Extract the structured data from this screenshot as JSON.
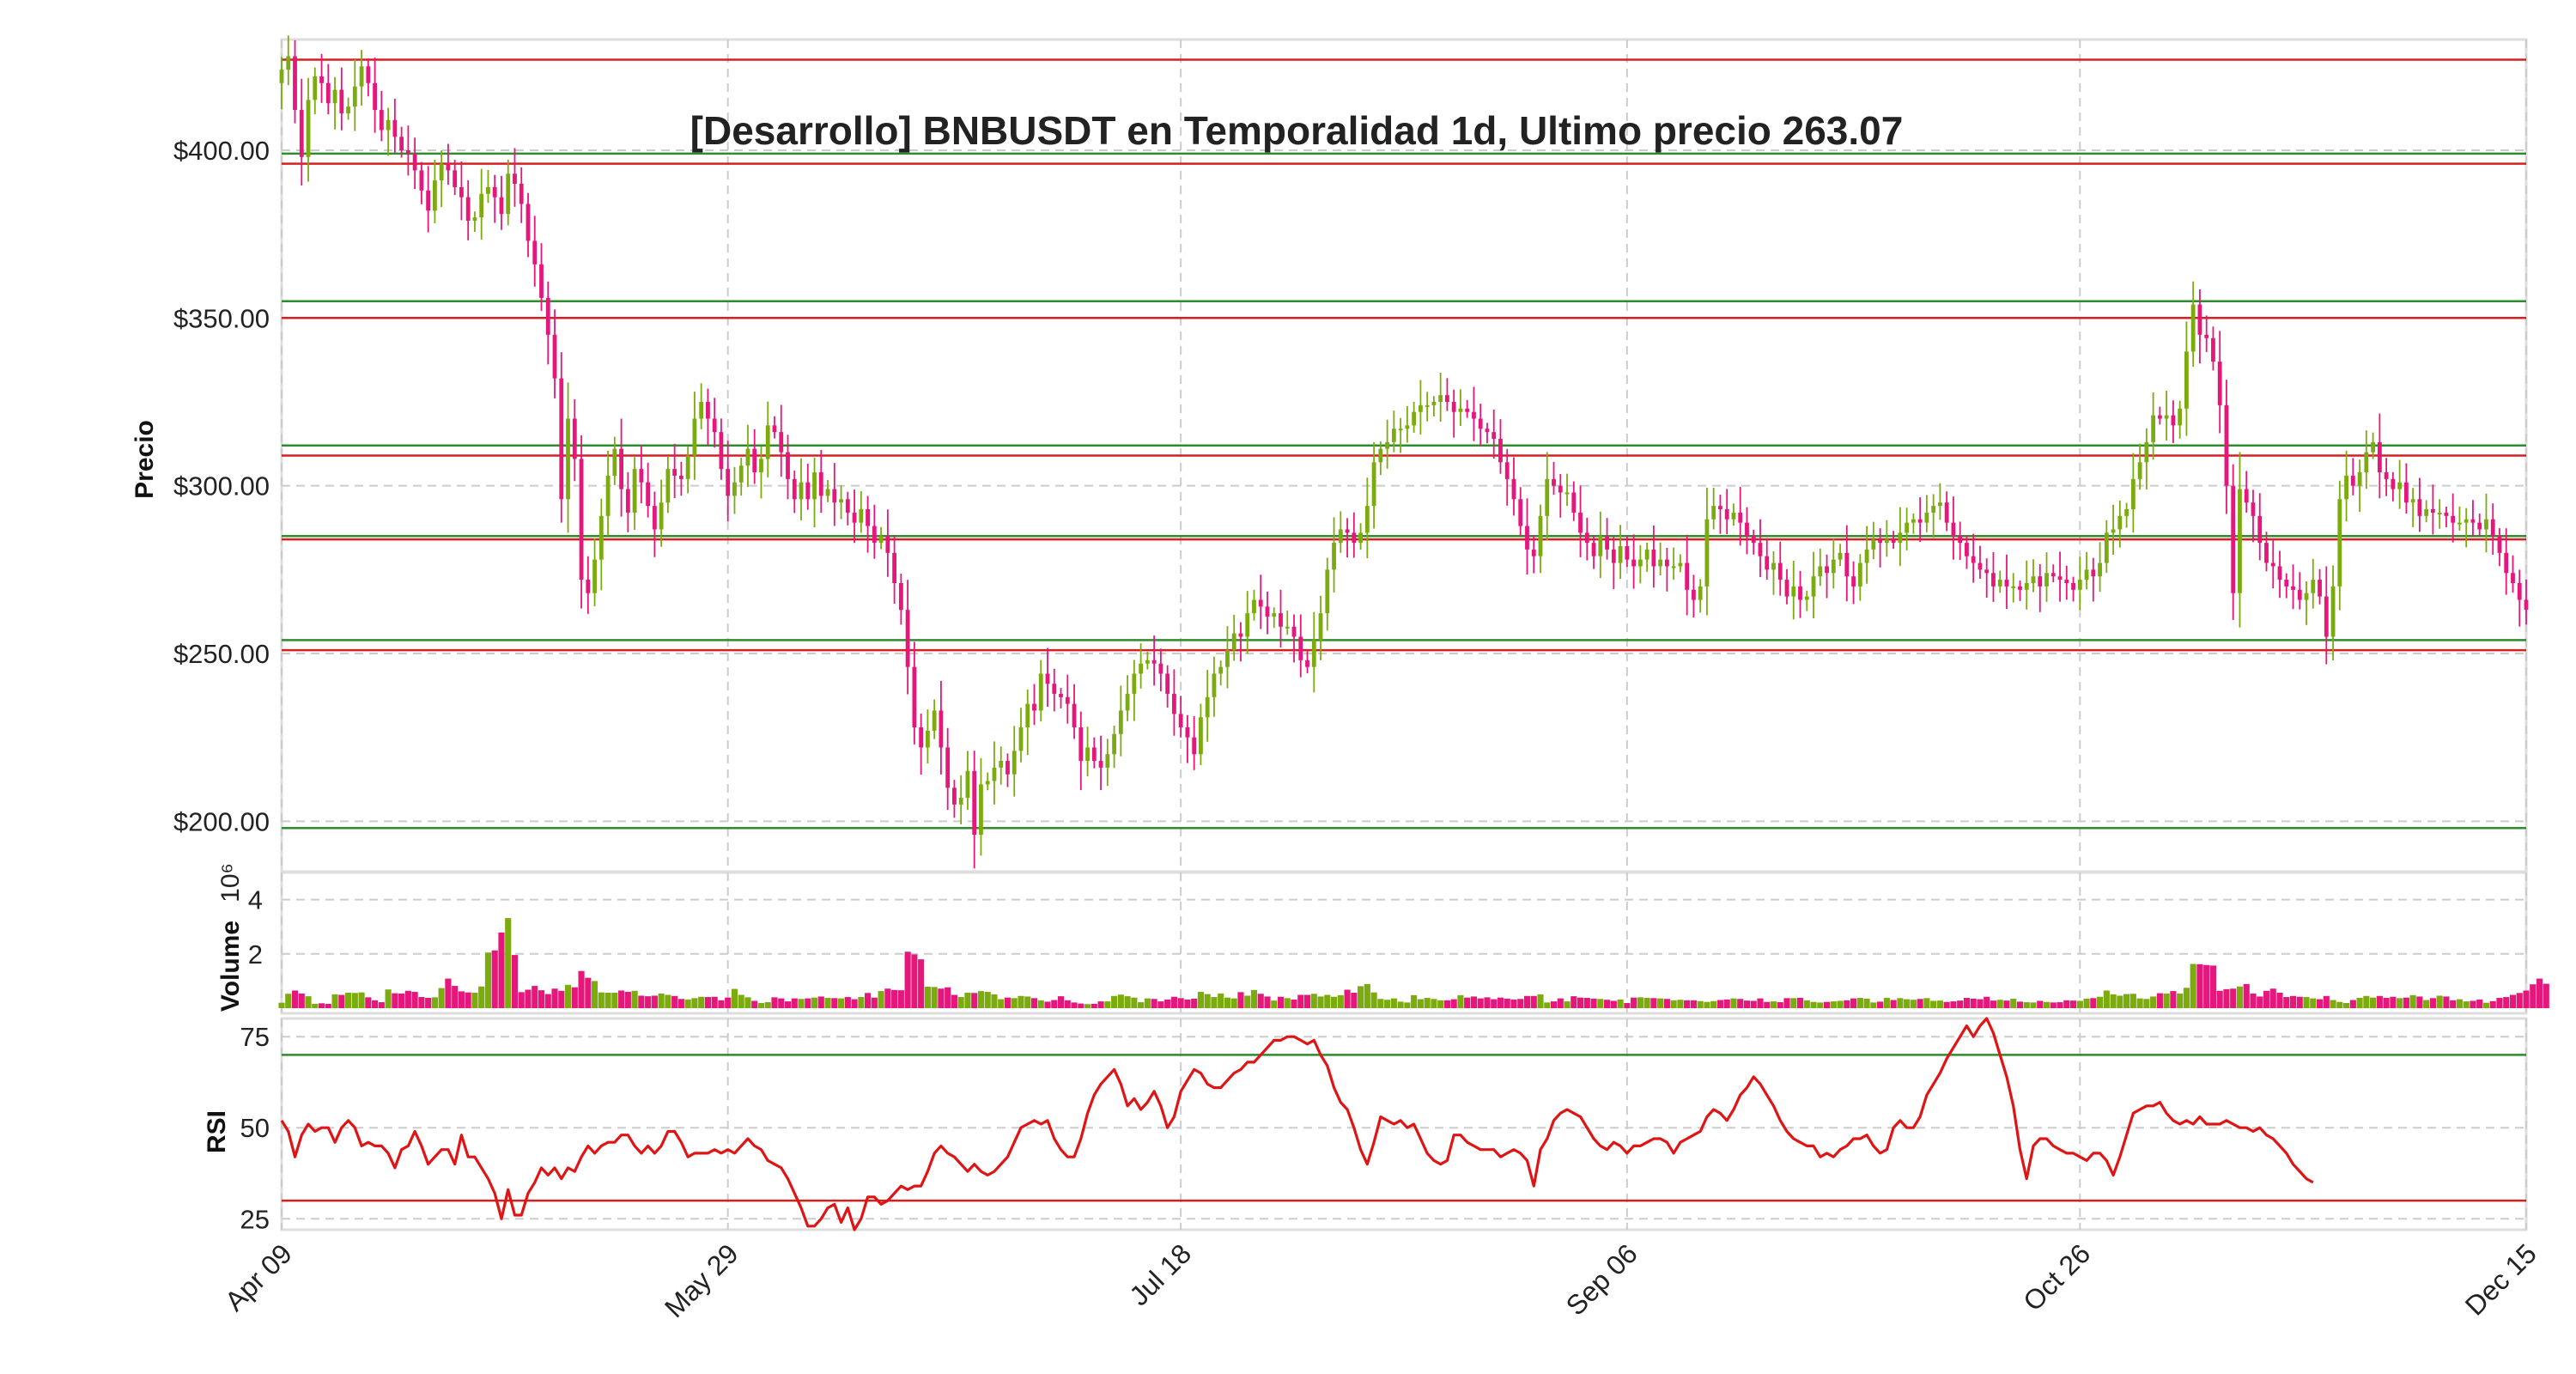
{
  "chart_data": {
    "type": "candlestick",
    "title": "[Desarrollo] BNBUSDT en Temporalidad 1d, Ultimo precio 263.07",
    "colors": {
      "up": "#7cab10",
      "down": "#e5177b",
      "support": "#2e8b2e",
      "resistance": "#d62020",
      "rsi_line": "#e01414",
      "grid": "#cccccc"
    },
    "x_ticks": [
      "Apr 09",
      "May 29",
      "Jul 18",
      "Sep 06",
      "Oct 26",
      "Dec 15"
    ],
    "grid": true,
    "price_panel": {
      "ylabel": "Precio",
      "ylim": [
        185,
        433
      ],
      "y_ticks": [
        200,
        250,
        300,
        350,
        400
      ],
      "y_tick_labels": [
        "$200.00",
        "$250.00",
        "$300.00",
        "$350.00",
        "$400.00"
      ],
      "support_levels": [
        198,
        254,
        285,
        312,
        355,
        399
      ],
      "resistance_levels": [
        251,
        284,
        309,
        350,
        396,
        427
      ],
      "close": [
        424,
        428,
        412,
        398,
        415,
        422,
        420,
        414,
        418,
        411,
        413,
        419,
        425,
        420,
        412,
        406,
        409,
        404,
        400,
        399,
        394,
        388,
        382,
        391,
        396,
        394,
        389,
        386,
        379,
        380,
        387,
        389,
        386,
        381,
        393,
        390,
        384,
        373,
        366,
        356,
        345,
        332,
        296,
        320,
        308,
        272,
        268,
        278,
        291,
        303,
        311,
        299,
        292,
        305,
        301,
        294,
        287,
        295,
        305,
        303,
        302,
        309,
        320,
        325,
        320,
        316,
        305,
        297,
        301,
        306,
        311,
        304,
        308,
        318,
        316,
        310,
        302,
        296,
        301,
        296,
        304,
        297,
        299,
        295,
        296,
        292,
        289,
        293,
        288,
        283,
        285,
        280,
        271,
        263,
        246,
        228,
        222,
        227,
        233,
        222,
        210,
        205,
        207,
        215,
        196,
        211,
        212,
        216,
        218,
        214,
        221,
        228,
        235,
        233,
        244,
        241,
        238,
        237,
        235,
        228,
        218,
        222,
        218,
        216,
        220,
        226,
        233,
        238,
        244,
        247,
        248,
        247,
        244,
        238,
        232,
        228,
        225,
        220,
        231,
        237,
        244,
        246,
        251,
        256,
        255,
        262,
        266,
        264,
        261,
        262,
        258,
        258,
        255,
        248,
        246,
        254,
        262,
        275,
        283,
        287,
        286,
        283,
        286,
        294,
        307,
        311,
        313,
        317,
        317,
        318,
        322,
        324,
        324,
        325,
        327,
        325,
        322,
        323,
        322,
        320,
        317,
        316,
        314,
        307,
        302,
        296,
        288,
        281,
        279,
        291,
        302,
        300,
        298,
        298,
        292,
        286,
        283,
        279,
        285,
        281,
        277,
        282,
        278,
        276,
        278,
        281,
        276,
        278,
        276,
        276,
        277,
        269,
        266,
        270,
        290,
        294,
        293,
        290,
        292,
        289,
        285,
        283,
        279,
        275,
        277,
        272,
        267,
        270,
        266,
        267,
        273,
        276,
        274,
        278,
        280,
        273,
        270,
        277,
        281,
        284,
        283,
        284,
        283,
        286,
        289,
        290,
        289,
        292,
        294,
        295,
        289,
        285,
        283,
        279,
        277,
        275,
        274,
        270,
        272,
        270,
        270,
        269,
        271,
        273,
        270,
        274,
        273,
        272,
        271,
        269,
        272,
        275,
        273,
        277,
        286,
        287,
        291,
        293,
        302,
        307,
        313,
        321,
        320,
        321,
        318,
        323,
        340,
        354,
        345,
        344,
        337,
        324,
        300,
        268,
        299,
        295,
        291,
        283,
        277,
        276,
        272,
        270,
        269,
        266,
        268,
        272,
        267,
        255,
        270,
        296,
        303,
        300,
        304,
        310,
        313,
        304,
        302,
        299,
        301,
        295,
        296,
        291,
        293,
        292,
        292,
        291,
        289,
        289,
        290,
        289,
        287,
        290,
        285,
        280,
        274,
        271,
        266,
        263.07
      ]
    },
    "volume_panel": {
      "ylabel": "Volume",
      "scale_label": "1e6",
      "y_ticks": [
        2,
        4
      ],
      "ylim": [
        0,
        5
      ],
      "values": [
        0.2,
        0.53,
        0.65,
        0.54,
        0.44,
        0.16,
        0.18,
        0.16,
        0.51,
        0.49,
        0.57,
        0.56,
        0.58,
        0.4,
        0.29,
        0.22,
        0.69,
        0.55,
        0.54,
        0.64,
        0.6,
        0.41,
        0.38,
        0.4,
        0.74,
        1.09,
        0.82,
        0.62,
        0.58,
        0.57,
        0.8,
        2.05,
        2.13,
        2.79,
        3.32,
        1.96,
        0.59,
        0.68,
        0.82,
        0.66,
        0.52,
        0.72,
        0.64,
        0.86,
        0.77,
        1.37,
        1.12,
        1.0,
        0.58,
        0.57,
        0.57,
        0.65,
        0.6,
        0.64,
        0.46,
        0.44,
        0.46,
        0.54,
        0.49,
        0.45,
        0.34,
        0.32,
        0.37,
        0.42,
        0.41,
        0.42,
        0.29,
        0.39,
        0.71,
        0.49,
        0.4,
        0.27,
        0.19,
        0.22,
        0.4,
        0.36,
        0.25,
        0.36,
        0.34,
        0.36,
        0.39,
        0.43,
        0.38,
        0.37,
        0.36,
        0.41,
        0.33,
        0.41,
        0.56,
        0.39,
        0.63,
        0.72,
        0.67,
        0.66,
        2.08,
        1.98,
        1.8,
        0.79,
        0.78,
        0.72,
        0.77,
        0.49,
        0.41,
        0.57,
        0.56,
        0.63,
        0.6,
        0.51,
        0.33,
        0.39,
        0.37,
        0.45,
        0.43,
        0.37,
        0.29,
        0.24,
        0.3,
        0.44,
        0.29,
        0.21,
        0.17,
        0.15,
        0.16,
        0.25,
        0.25,
        0.45,
        0.5,
        0.44,
        0.39,
        0.22,
        0.36,
        0.34,
        0.25,
        0.32,
        0.42,
        0.37,
        0.32,
        0.35,
        0.6,
        0.52,
        0.41,
        0.54,
        0.39,
        0.36,
        0.59,
        0.46,
        0.67,
        0.53,
        0.43,
        0.28,
        0.42,
        0.37,
        0.32,
        0.49,
        0.49,
        0.53,
        0.43,
        0.49,
        0.42,
        0.48,
        0.68,
        0.57,
        0.81,
        0.89,
        0.58,
        0.34,
        0.31,
        0.36,
        0.24,
        0.21,
        0.48,
        0.33,
        0.38,
        0.34,
        0.29,
        0.29,
        0.33,
        0.48,
        0.39,
        0.43,
        0.36,
        0.4,
        0.33,
        0.39,
        0.35,
        0.32,
        0.34,
        0.45,
        0.45,
        0.51,
        0.21,
        0.25,
        0.36,
        0.25,
        0.44,
        0.39,
        0.38,
        0.35,
        0.34,
        0.31,
        0.27,
        0.32,
        0.19,
        0.39,
        0.4,
        0.38,
        0.37,
        0.36,
        0.34,
        0.29,
        0.31,
        0.29,
        0.29,
        0.26,
        0.23,
        0.26,
        0.3,
        0.32,
        0.36,
        0.34,
        0.28,
        0.27,
        0.36,
        0.23,
        0.25,
        0.22,
        0.37,
        0.37,
        0.38,
        0.29,
        0.23,
        0.21,
        0.23,
        0.25,
        0.27,
        0.29,
        0.36,
        0.38,
        0.35,
        0.21,
        0.24,
        0.38,
        0.3,
        0.37,
        0.33,
        0.31,
        0.34,
        0.37,
        0.27,
        0.28,
        0.23,
        0.25,
        0.28,
        0.38,
        0.35,
        0.33,
        0.42,
        0.28,
        0.31,
        0.28,
        0.35,
        0.24,
        0.22,
        0.21,
        0.27,
        0.23,
        0.21,
        0.22,
        0.29,
        0.28,
        0.27,
        0.35,
        0.37,
        0.42,
        0.65,
        0.51,
        0.46,
        0.52,
        0.53,
        0.36,
        0.34,
        0.43,
        0.55,
        0.54,
        0.63,
        0.54,
        0.75,
        1.63,
        1.62,
        1.59,
        1.57,
        0.64,
        0.7,
        0.72,
        0.8,
        0.89,
        0.54,
        0.43,
        0.64,
        0.72,
        0.57,
        0.41,
        0.45,
        0.42,
        0.41,
        0.36,
        0.33,
        0.45,
        0.3,
        0.23,
        0.19,
        0.3,
        0.38,
        0.45,
        0.39,
        0.45,
        0.38,
        0.42,
        0.37,
        0.39,
        0.48,
        0.43,
        0.3,
        0.37,
        0.46,
        0.43,
        0.29,
        0.33,
        0.25,
        0.27,
        0.32,
        0.2,
        0.26,
        0.38,
        0.41,
        0.49,
        0.56,
        0.65,
        0.88,
        1.09,
        0.9
      ]
    },
    "rsi_panel": {
      "ylabel": "RSI",
      "y_ticks": [
        25,
        50,
        75
      ],
      "ylim": [
        22,
        80
      ],
      "overbought": 70,
      "oversold": 30,
      "values": [
        52,
        49,
        42,
        48,
        51,
        49,
        50,
        50,
        46,
        50,
        52,
        50,
        45,
        46,
        45,
        45,
        43,
        39,
        44,
        45,
        49,
        45,
        40,
        42,
        44,
        44,
        40,
        48,
        42,
        42,
        39,
        36,
        32,
        25,
        33,
        26,
        26,
        32,
        35,
        39,
        37,
        39,
        36,
        39,
        38,
        42,
        45,
        43,
        45,
        46,
        46,
        48,
        48,
        45,
        43,
        45,
        43,
        45,
        49,
        49,
        46,
        42,
        43,
        43,
        43,
        44,
        43,
        44,
        43,
        45,
        47,
        45,
        44,
        41,
        40,
        39,
        36,
        32,
        28,
        23,
        23,
        25,
        28,
        29,
        24,
        28,
        22,
        25,
        31,
        31,
        29,
        30,
        32,
        34,
        33,
        34,
        34,
        38,
        43,
        45,
        43,
        42,
        40,
        38,
        40,
        38,
        37,
        38,
        40,
        42,
        46,
        50,
        51,
        52,
        51,
        52,
        47,
        44,
        42,
        42,
        47,
        54,
        59,
        62,
        64,
        66,
        62,
        56,
        58,
        55,
        57,
        60,
        56,
        50,
        53,
        60,
        63,
        66,
        65,
        62,
        61,
        61,
        63,
        65,
        66,
        68,
        68,
        70,
        72,
        74,
        74,
        75,
        75,
        74,
        73,
        74,
        70,
        67,
        61,
        57,
        55,
        50,
        44,
        40,
        46,
        53,
        52,
        51,
        52,
        50,
        51,
        47,
        43,
        41,
        40,
        41,
        48,
        48,
        46,
        45,
        44,
        44,
        44,
        42,
        43,
        44,
        43,
        41,
        34,
        44,
        47,
        52,
        54,
        55,
        54,
        53,
        50,
        47,
        45,
        44,
        46,
        45,
        43,
        45,
        45,
        46,
        47,
        47,
        46,
        43,
        46,
        47,
        48,
        49,
        53,
        55,
        54,
        52,
        55,
        59,
        61,
        64,
        62,
        59,
        56,
        52,
        49,
        47,
        46,
        45,
        45,
        42,
        43,
        42,
        44,
        45,
        47,
        47,
        48,
        45,
        43,
        44,
        50,
        52,
        50,
        50,
        53,
        59,
        62,
        65,
        69,
        72,
        75,
        78,
        75,
        78,
        80,
        76,
        70,
        64,
        56,
        44,
        36,
        45,
        47,
        47,
        45,
        44,
        43,
        43,
        42,
        41,
        43,
        43,
        41,
        37,
        42,
        48,
        54,
        55,
        56,
        56,
        57,
        54,
        52,
        51,
        52,
        51,
        53,
        51,
        51,
        51,
        52,
        51,
        50,
        50,
        49,
        50,
        48,
        47,
        45,
        43,
        40,
        38,
        36,
        35
      ]
    }
  }
}
